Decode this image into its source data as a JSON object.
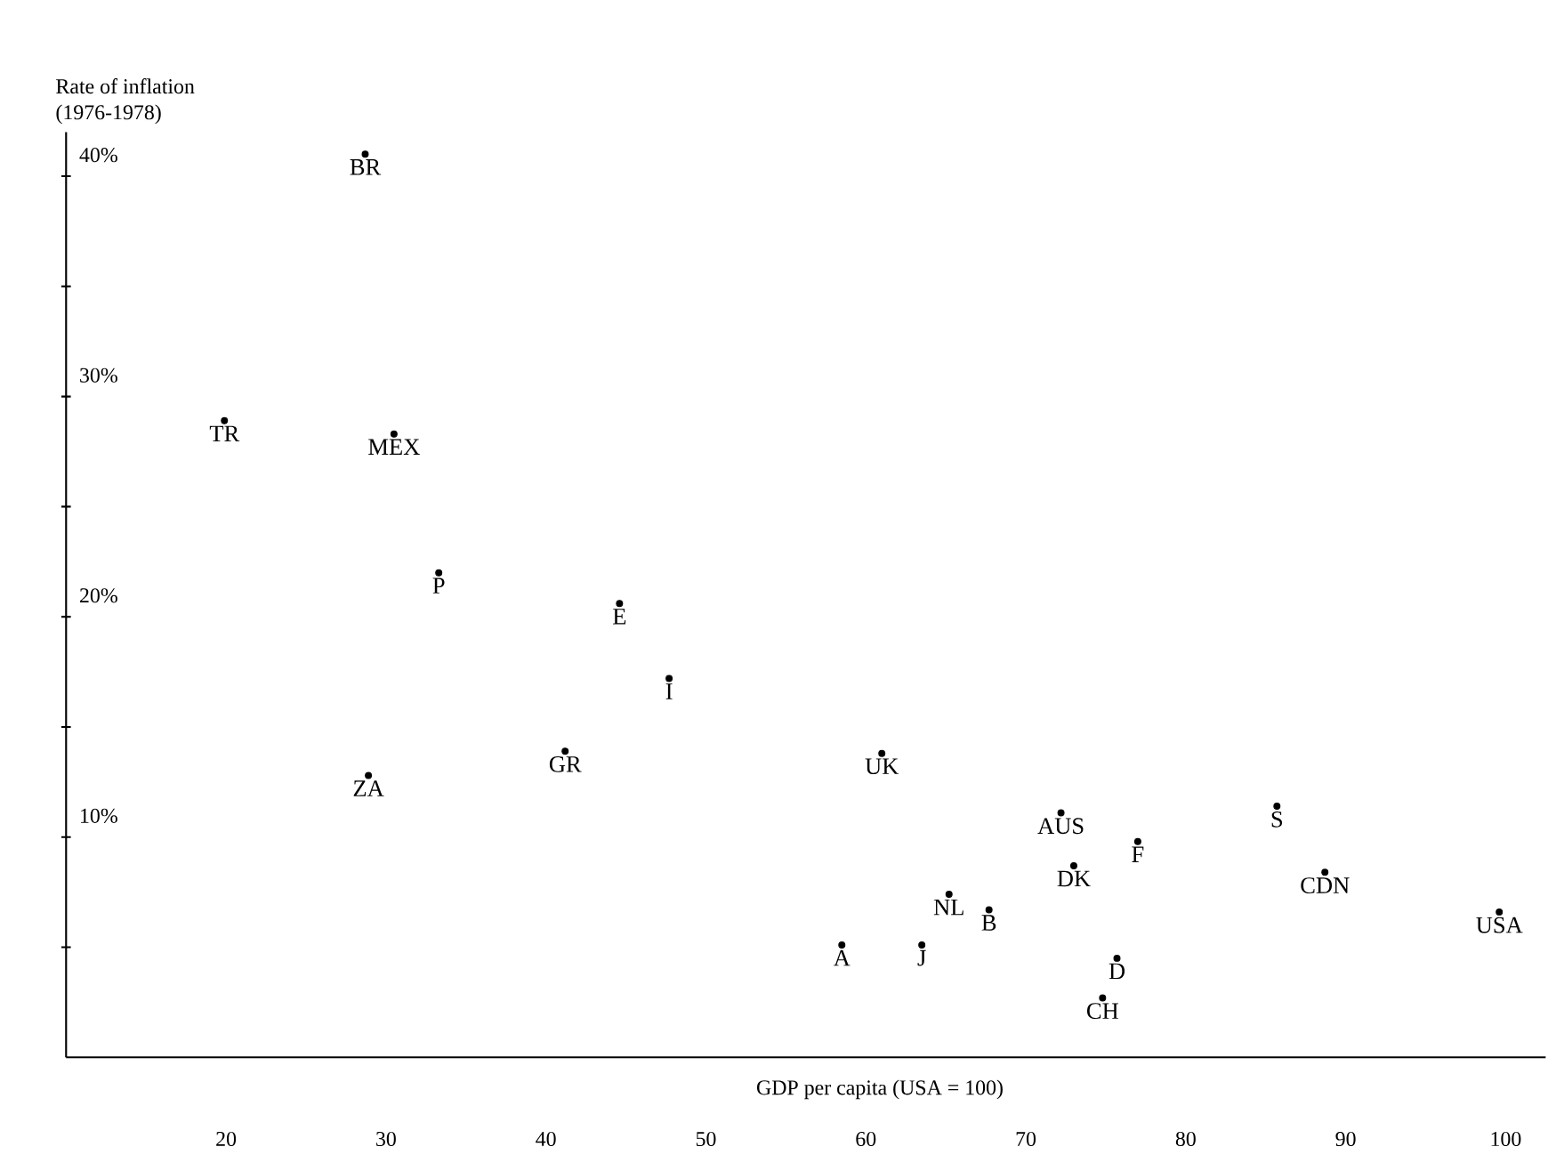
{
  "chart_data": {
    "type": "scatter",
    "xlabel": "GDP per capita (USA = 100)",
    "ylabel": "Rate of inflation (1976-1978)",
    "x": [
      28.7,
      19.9,
      30.5,
      33.3,
      44.6,
      47.7,
      28.9,
      41.2,
      61.0,
      72.2,
      77.0,
      85.7,
      88.7,
      99.6,
      73.0,
      65.2,
      67.7,
      58.5,
      63.5,
      75.7,
      74.8
    ],
    "values": [
      41.0,
      28.9,
      28.3,
      22.0,
      20.6,
      17.2,
      12.8,
      13.9,
      13.8,
      11.1,
      9.8,
      11.4,
      8.4,
      6.6,
      8.7,
      7.4,
      6.7,
      5.1,
      5.1,
      4.5,
      2.7
    ],
    "color": "#000000",
    "marker": "circle",
    "grid": false,
    "xlim": [
      10,
      102.5
    ],
    "ylim": [
      0,
      42
    ],
    "xticks": [
      20,
      30,
      40,
      50,
      60,
      70,
      80,
      90,
      100
    ],
    "yticks": [
      {
        "value": 5,
        "label": null
      },
      {
        "value": 10,
        "label": "10%"
      },
      {
        "value": 15,
        "label": null
      },
      {
        "value": 20,
        "label": "20%"
      },
      {
        "value": 25,
        "label": null
      },
      {
        "value": 30,
        "label": "30%"
      },
      {
        "value": 35,
        "label": null
      },
      {
        "value": 40,
        "label": "40%"
      }
    ],
    "annotations": [
      {
        "text": "BR",
        "x": 28.7,
        "y": 41.0
      },
      {
        "text": "TR",
        "x": 19.9,
        "y": 28.9
      },
      {
        "text": "MEX",
        "x": 30.5,
        "y": 28.3
      },
      {
        "text": "P",
        "x": 33.3,
        "y": 22.0
      },
      {
        "text": "E",
        "x": 44.6,
        "y": 20.6
      },
      {
        "text": "I",
        "x": 47.7,
        "y": 17.2
      },
      {
        "text": "ZA",
        "x": 28.9,
        "y": 12.8
      },
      {
        "text": "GR",
        "x": 41.2,
        "y": 13.9
      },
      {
        "text": "UK",
        "x": 61.0,
        "y": 13.8
      },
      {
        "text": "AUS",
        "x": 72.2,
        "y": 11.1
      },
      {
        "text": "F",
        "x": 77.0,
        "y": 9.8
      },
      {
        "text": "S",
        "x": 85.7,
        "y": 11.4
      },
      {
        "text": "CDN",
        "x": 88.7,
        "y": 8.4
      },
      {
        "text": "USA",
        "x": 99.6,
        "y": 6.6
      },
      {
        "text": "DK",
        "x": 73.0,
        "y": 8.7
      },
      {
        "text": "NL",
        "x": 65.2,
        "y": 7.4
      },
      {
        "text": "B",
        "x": 67.7,
        "y": 6.7
      },
      {
        "text": "A",
        "x": 58.5,
        "y": 5.1
      },
      {
        "text": "J",
        "x": 63.5,
        "y": 5.1
      },
      {
        "text": "D",
        "x": 75.7,
        "y": 4.5
      },
      {
        "text": "CH",
        "x": 74.8,
        "y": 2.7
      }
    ]
  }
}
